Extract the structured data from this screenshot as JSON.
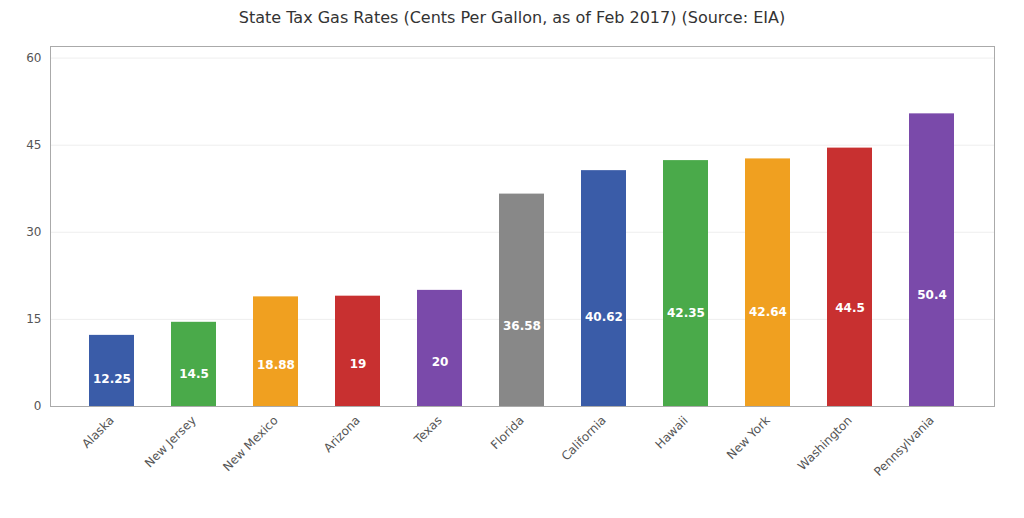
{
  "chart_data": {
    "type": "bar",
    "title": "State Tax Gas Rates (Cents Per Gallon, as of Feb 2017) (Source: EIA)",
    "categories": [
      "Alaska",
      "New Jersey",
      "New Mexico",
      "Arizona",
      "Texas",
      "Florida",
      "California",
      "Hawaii",
      "New York",
      "Washington",
      "Pennsylvania"
    ],
    "values": [
      12.25,
      14.5,
      18.88,
      19,
      20,
      36.58,
      40.62,
      42.35,
      42.64,
      44.5,
      50.4
    ],
    "colors": [
      "#3a5ca8",
      "#4aaa4a",
      "#f0a020",
      "#c83030",
      "#7a4aaa",
      "#888888",
      "#3a5ca8",
      "#4aaa4a",
      "#f0a020",
      "#c83030",
      "#7a4aaa"
    ],
    "ylim": [
      0,
      62
    ],
    "yticks": [
      0,
      15,
      30,
      45,
      60
    ],
    "grid": true,
    "data_labels": true
  }
}
